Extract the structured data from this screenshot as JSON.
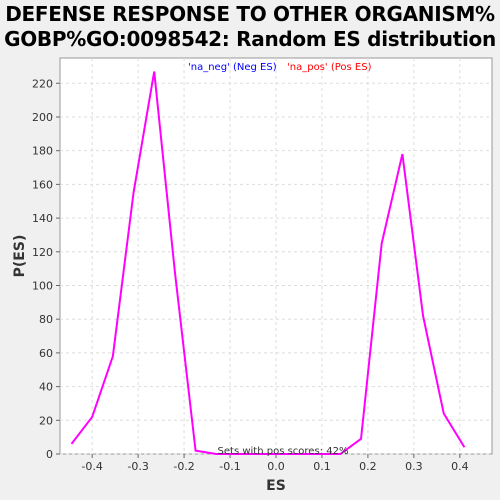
{
  "chart_data": {
    "type": "line",
    "title_line1": "DEFENSE RESPONSE TO OTHER ORGANISM%",
    "title_line2": "GOBP%GO:0098542: Random ES distribution",
    "xlabel": "ES",
    "ylabel": "P(ES)",
    "xlim": [
      -0.47,
      0.47
    ],
    "ylim": [
      0,
      235
    ],
    "x_ticks": [
      -0.4,
      -0.3,
      -0.2,
      -0.1,
      0.0,
      0.1,
      0.2,
      0.3,
      0.4
    ],
    "x_tick_labels": [
      "-0.4",
      "-0.3",
      "-0.2",
      "-0.1",
      "0.0",
      "0.1",
      "0.2",
      "0.3",
      "0.4"
    ],
    "y_ticks": [
      0,
      20,
      40,
      60,
      80,
      100,
      120,
      140,
      160,
      180,
      200,
      220
    ],
    "y_tick_labels": [
      "0",
      "20",
      "40",
      "60",
      "80",
      "100",
      "120",
      "140",
      "160",
      "180",
      "200",
      "220"
    ],
    "grid": true,
    "legend": [
      {
        "label": "'na_neg' (Neg ES)",
        "color": "#0000ff"
      },
      {
        "label": "'na_pos' (Pos ES)",
        "color": "#ff0000"
      }
    ],
    "legend_placement": "top-center",
    "annotation": "Sets with pos scores: 42%",
    "series": [
      {
        "color": "#ff00ff",
        "x": [
          -0.445,
          -0.4,
          -0.355,
          -0.31,
          -0.265,
          -0.22,
          -0.175,
          -0.13,
          -0.085,
          -0.04,
          0.005,
          0.05,
          0.095,
          0.14,
          0.185,
          0.23,
          0.275,
          0.32,
          0.365,
          0.41
        ],
        "y": [
          6,
          22,
          58,
          155,
          227,
          108,
          2,
          0,
          0,
          0,
          0,
          0,
          0,
          0,
          9,
          125,
          178,
          82,
          24,
          4
        ]
      }
    ]
  }
}
